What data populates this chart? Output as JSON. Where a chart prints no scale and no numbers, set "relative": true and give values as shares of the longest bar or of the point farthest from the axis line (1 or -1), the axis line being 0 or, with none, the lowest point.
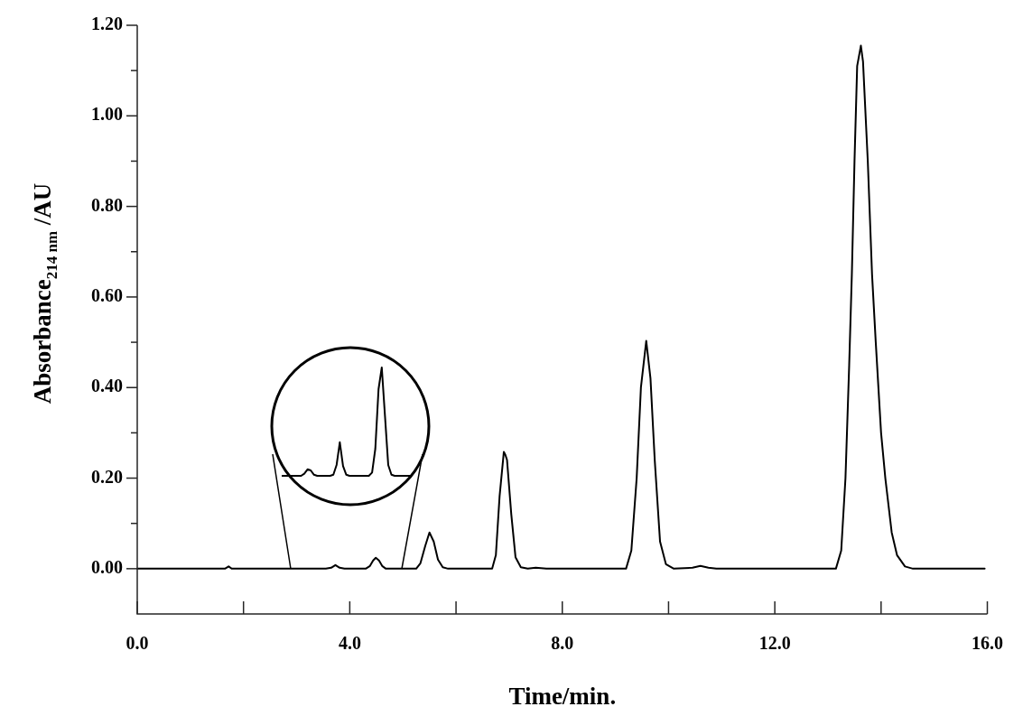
{
  "chart_data": [
    {
      "type": "line",
      "xlabel": "Time/min.",
      "ylabel": "Absorbance$_{214 nm}$ /AU",
      "xlim": [
        0,
        16
      ],
      "ylim": [
        -0.1,
        1.2
      ],
      "xticks": [
        {
          "value": 0,
          "label": "0.0"
        },
        {
          "value": 2,
          "label": null
        },
        {
          "value": 4,
          "label": "4.0"
        },
        {
          "value": 6,
          "label": null
        },
        {
          "value": 8,
          "label": "8.0"
        },
        {
          "value": 10,
          "label": null
        },
        {
          "value": 12,
          "label": "12.0"
        },
        {
          "value": 14,
          "label": null
        },
        {
          "value": 16,
          "label": "16.0"
        }
      ],
      "yticks": [
        {
          "value": 0,
          "label": "0.00"
        },
        {
          "value": 0.1,
          "label": null
        },
        {
          "value": 0.2,
          "label": "0.20"
        },
        {
          "value": 0.3,
          "label": null
        },
        {
          "value": 0.4,
          "label": "0.40"
        },
        {
          "value": 0.5,
          "label": null
        },
        {
          "value": 0.6,
          "label": "0.60"
        },
        {
          "value": 0.7,
          "label": null
        },
        {
          "value": 0.8,
          "label": "0.80"
        },
        {
          "value": 0.9,
          "label": null
        },
        {
          "value": 1.0,
          "label": "1.00"
        },
        {
          "value": 1.1,
          "label": null
        },
        {
          "value": 1.2,
          "label": "1.20"
        }
      ],
      "legend": false,
      "marker": "none",
      "line_style": "solid",
      "series": [
        {
          "color": "#000000",
          "x": [
            0,
            0.4,
            0.8,
            1.2,
            1.65,
            1.72,
            1.78,
            2.2,
            2.7,
            3.2,
            3.55,
            3.65,
            3.73,
            3.81,
            3.9,
            4.3,
            4.38,
            4.44,
            4.49,
            4.55,
            4.61,
            4.68,
            5.0,
            5.25,
            5.33,
            5.42,
            5.5,
            5.58,
            5.66,
            5.75,
            5.85,
            6.3,
            6.68,
            6.75,
            6.82,
            6.9,
            6.93,
            6.96,
            7.04,
            7.12,
            7.22,
            7.35,
            7.5,
            7.7,
            8.2,
            8.7,
            9.2,
            9.3,
            9.4,
            9.48,
            9.58,
            9.66,
            9.74,
            9.84,
            9.95,
            10.1,
            10.45,
            10.6,
            10.75,
            10.9,
            11.4,
            11.9,
            12.4,
            12.9,
            13.15,
            13.25,
            13.33,
            13.4,
            13.45,
            13.5,
            13.55,
            13.62,
            13.66,
            13.75,
            13.83,
            13.9,
            14.0,
            14.08,
            14.2,
            14.3,
            14.45,
            14.6,
            15.0,
            15.5,
            15.95
          ],
          "values": [
            0,
            0,
            0,
            0,
            0,
            0.005,
            0,
            0,
            0,
            0,
            0,
            0.002,
            0.008,
            0.002,
            0,
            0,
            0.006,
            0.018,
            0.024,
            0.018,
            0.006,
            0,
            0,
            0,
            0.012,
            0.05,
            0.08,
            0.06,
            0.02,
            0.003,
            0,
            0,
            0,
            0.03,
            0.16,
            0.258,
            0.251,
            0.24,
            0.12,
            0.025,
            0.003,
            0,
            0.002,
            0,
            0,
            0,
            0,
            0.04,
            0.2,
            0.4,
            0.503,
            0.42,
            0.24,
            0.06,
            0.01,
            0,
            0.002,
            0.006,
            0.002,
            0,
            0,
            0,
            0,
            0,
            0,
            0.04,
            0.2,
            0.45,
            0.65,
            0.9,
            1.11,
            1.155,
            1.12,
            0.9,
            0.65,
            0.5,
            0.3,
            0.2,
            0.08,
            0.03,
            0.005,
            0,
            0,
            0,
            0
          ]
        }
      ]
    },
    {
      "type": "line",
      "relative": true,
      "legend": false,
      "marker": "none",
      "line_style": "solid",
      "categories": [
        null,
        null,
        null,
        null,
        null,
        null,
        null,
        null,
        null,
        null,
        null,
        null,
        null,
        null,
        null,
        null,
        null,
        null,
        null,
        null,
        null,
        null,
        null,
        null,
        null,
        null,
        null,
        null,
        null,
        null,
        null,
        null,
        null,
        null,
        null,
        null,
        null,
        null,
        null,
        null,
        null
      ],
      "series": [
        {
          "color": "#000000",
          "values": [
            0,
            0,
            0,
            0,
            0,
            0,
            0,
            0.02,
            0.06,
            0.05,
            0.01,
            0,
            0,
            0,
            0,
            0,
            0.01,
            0.1,
            0.31,
            0.09,
            0.01,
            0,
            0,
            0,
            0,
            0,
            0,
            0,
            0.03,
            0.25,
            0.8,
            1,
            0.55,
            0.1,
            0.01,
            0,
            0,
            0,
            0,
            0,
            0
          ]
        }
      ]
    }
  ]
}
